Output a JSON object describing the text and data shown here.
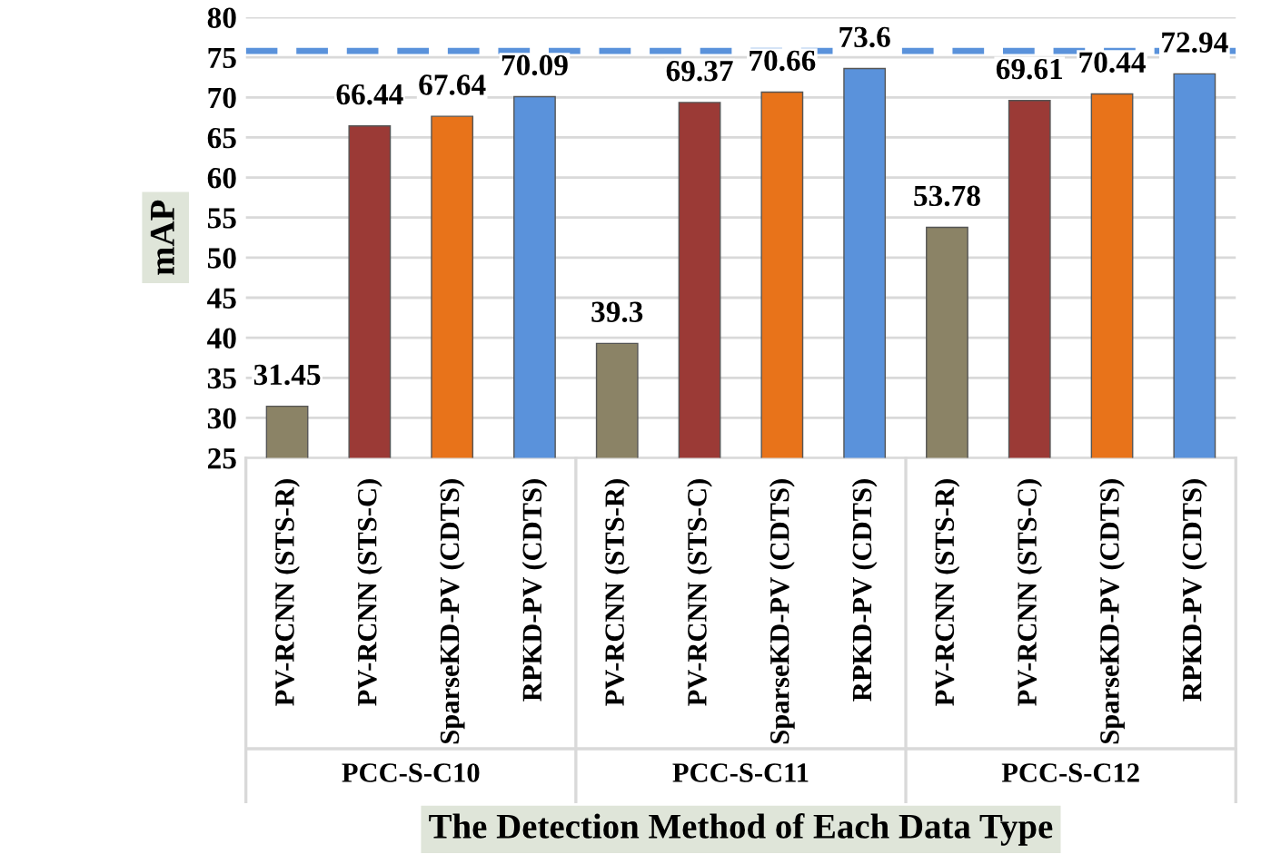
{
  "chart_data": {
    "type": "bar",
    "xlabel": "The Detection Method of Each Data Type",
    "ylabel": "mAP",
    "categories": [
      "PV-RCNN (STS-R)",
      "PV-RCNN (STS-C)",
      "SparseKD-PV (CDTS)",
      "RPKD-PV (CDTS)",
      "PV-RCNN (STS-R)",
      "PV-RCNN (STS-C)",
      "SparseKD-PV (CDTS)",
      "RPKD-PV (CDTS)",
      "PV-RCNN (STS-R)",
      "PV-RCNN (STS-C)",
      "SparseKD-PV (CDTS)",
      "RPKD-PV (CDTS)"
    ],
    "values": [
      31.45,
      66.44,
      67.64,
      70.09,
      39.3,
      69.37,
      70.66,
      73.6,
      53.78,
      69.61,
      70.44,
      72.94
    ],
    "colors": [
      "#8b8366",
      "#9b3a36",
      "#e8731a",
      "#5a92db",
      "#8b8366",
      "#9b3a36",
      "#e8731a",
      "#5a92db",
      "#8b8366",
      "#9b3a36",
      "#e8731a",
      "#5a92db"
    ],
    "data_labels": true,
    "annotations": [
      "PCC-S-C10",
      "PCC-S-C11",
      "PCC-S-C12"
    ],
    "ylim": [
      25,
      80
    ],
    "yticks": [
      25,
      30,
      35,
      40,
      45,
      50,
      55,
      60,
      65,
      70,
      75,
      80
    ],
    "grid": "y",
    "ref_lines": [
      {
        "axis": "y",
        "value": 75.8,
        "color": "#5a92db",
        "line_style": "dashed"
      }
    ]
  }
}
